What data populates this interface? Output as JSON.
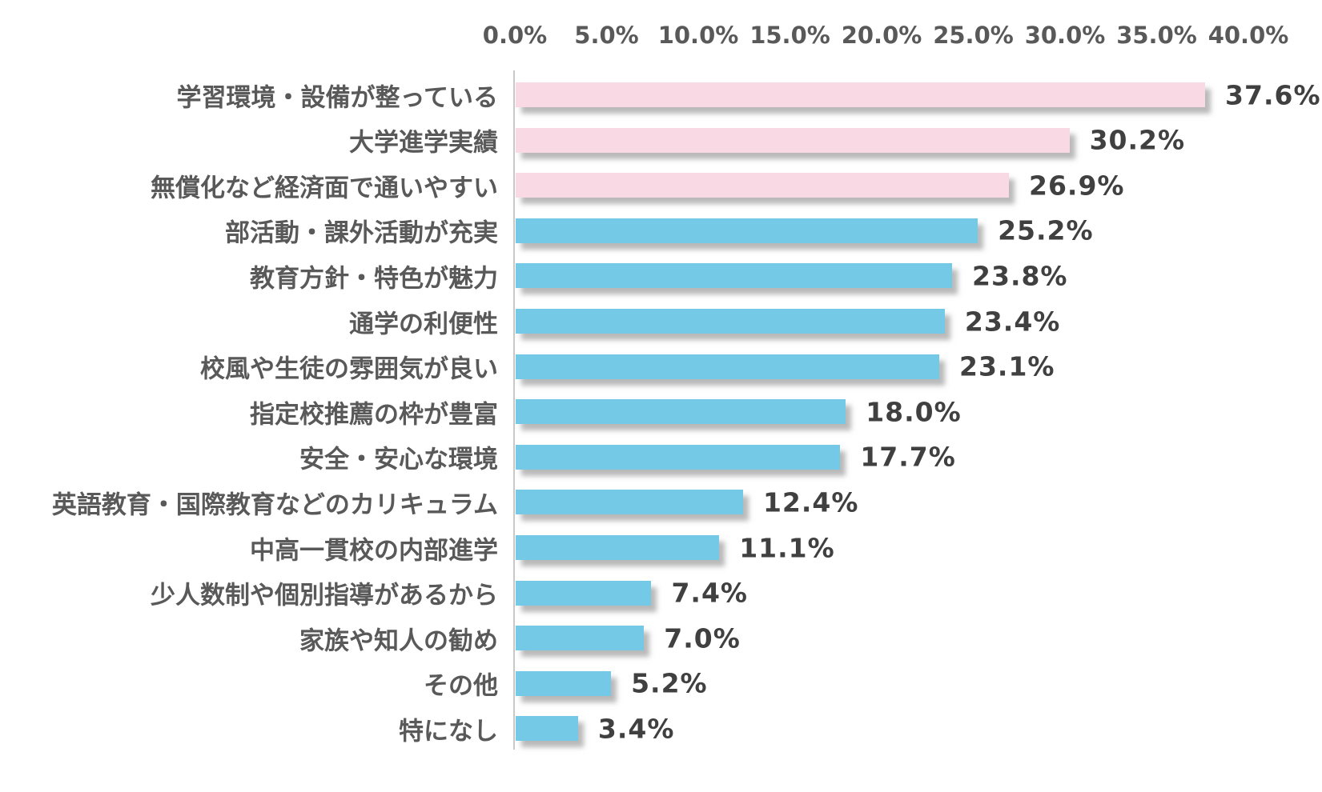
{
  "chart_data": {
    "type": "bar",
    "orientation": "horizontal",
    "title": "",
    "grid": false,
    "legend": null,
    "x_axis": {
      "position": "top",
      "range": [
        0,
        40
      ],
      "ticks": [
        "0.0%",
        "5.0%",
        "10.0%",
        "15.0%",
        "20.0%",
        "25.0%",
        "30.0%",
        "35.0%",
        "40.0%"
      ]
    },
    "categories": [
      "学習環境・設備が整っている",
      "大学進学実績",
      "無償化など経済面で通いやすい",
      "部活動・課外活動が充実",
      "教育方針・特色が魅力",
      "通学の利便性",
      "校風や生徒の雰囲気が良い",
      "指定校推薦の枠が豊富",
      "安全・安心な環境",
      "英語教育・国際教育などのカリキュラム",
      "中高一貫校の内部進学",
      "少人数制や個別指導があるから",
      "家族や知人の勧め",
      "その他",
      "特になし"
    ],
    "values": [
      37.6,
      30.2,
      26.9,
      25.2,
      23.8,
      23.4,
      23.1,
      18.0,
      17.7,
      12.4,
      11.1,
      7.4,
      7.0,
      5.2,
      3.4
    ],
    "value_labels": [
      "37.6%",
      "30.2%",
      "26.9%",
      "25.2%",
      "23.8%",
      "23.4%",
      "23.1%",
      "18.0%",
      "17.7%",
      "12.4%",
      "11.1%",
      "7.4%",
      "7.0%",
      "5.2%",
      "3.4%"
    ],
    "colors": {
      "bar_highlight": "#f8d9e4",
      "bar_default": "#74c9e7",
      "highlight_rows": 3,
      "category_text": "#595959",
      "value_text": "#404040",
      "tick_text": "#595959",
      "axis_line": "#c9c9c9",
      "background": "#ffffff"
    }
  }
}
